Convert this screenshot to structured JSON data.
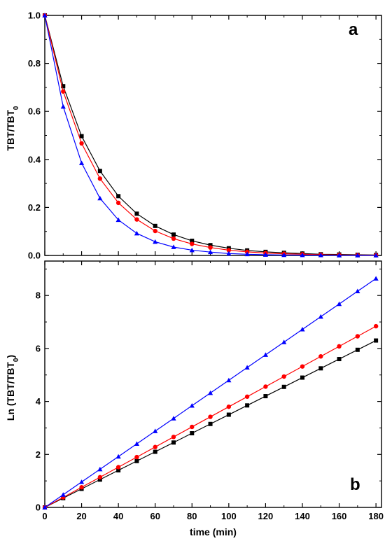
{
  "chart_data": [
    {
      "type": "line",
      "panel_label": "a",
      "xlabel": "",
      "ylabel": "TBT/TBT",
      "ylabel_sub": "0",
      "xlim": [
        0,
        183
      ],
      "ylim": [
        0,
        1.0
      ],
      "xticks": [
        0,
        20,
        40,
        60,
        80,
        100,
        120,
        140,
        160,
        180
      ],
      "yticks": [
        0.0,
        0.2,
        0.4,
        0.6,
        0.8,
        1.0
      ],
      "ytick_labels": [
        "0.0",
        "0.2",
        "0.4",
        "0.6",
        "0.8",
        "1.0"
      ],
      "grid": false,
      "x": [
        0,
        10,
        20,
        30,
        40,
        50,
        60,
        70,
        80,
        90,
        100,
        110,
        120,
        130,
        140,
        150,
        160,
        170,
        180
      ],
      "series": [
        {
          "color": "#000000",
          "marker": "square",
          "values": [
            1.0,
            0.705,
            0.497,
            0.352,
            0.247,
            0.174,
            0.123,
            0.087,
            0.061,
            0.043,
            0.03,
            0.021,
            0.015,
            0.011,
            0.008,
            0.005,
            0.004,
            0.003,
            0.002
          ]
        },
        {
          "color": "#ff0000",
          "marker": "circle",
          "values": [
            1.0,
            0.683,
            0.467,
            0.32,
            0.219,
            0.15,
            0.102,
            0.07,
            0.048,
            0.033,
            0.022,
            0.015,
            0.01,
            0.007,
            0.005,
            0.003,
            0.002,
            0.0015,
            0.001
          ]
        },
        {
          "color": "#0000ff",
          "marker": "triangle",
          "values": [
            1.0,
            0.62,
            0.385,
            0.238,
            0.148,
            0.092,
            0.057,
            0.035,
            0.022,
            0.014,
            0.008,
            0.005,
            0.003,
            0.002,
            0.0015,
            0.001,
            0.0005,
            0.0003,
            0.0002
          ]
        }
      ]
    },
    {
      "type": "line",
      "panel_label": "b",
      "xlabel": "time (min)",
      "ylabel": "Ln (TBT/TBT",
      "ylabel_sub": "0",
      "ylabel_suffix": ")",
      "xlim": [
        0,
        183
      ],
      "ylim": [
        0,
        9.3
      ],
      "xticks": [
        0,
        20,
        40,
        60,
        80,
        100,
        120,
        140,
        160,
        180
      ],
      "yticks": [
        0,
        2,
        4,
        6,
        8
      ],
      "ytick_labels": [
        "0",
        "2",
        "4",
        "6",
        "8"
      ],
      "grid": false,
      "x": [
        0,
        10,
        20,
        30,
        40,
        50,
        60,
        70,
        80,
        90,
        100,
        110,
        120,
        130,
        140,
        150,
        160,
        170,
        180
      ],
      "series": [
        {
          "color": "#000000",
          "marker": "square",
          "values": [
            0,
            0.35,
            0.7,
            1.05,
            1.4,
            1.75,
            2.1,
            2.45,
            2.8,
            3.15,
            3.5,
            3.85,
            4.2,
            4.55,
            4.9,
            5.25,
            5.6,
            5.95,
            6.3
          ]
        },
        {
          "color": "#ff0000",
          "marker": "circle",
          "values": [
            0,
            0.38,
            0.76,
            1.14,
            1.52,
            1.9,
            2.28,
            2.66,
            3.04,
            3.42,
            3.8,
            4.18,
            4.56,
            4.94,
            5.32,
            5.7,
            6.08,
            6.46,
            6.84
          ]
        },
        {
          "color": "#0000ff",
          "marker": "triangle",
          "values": [
            0,
            0.48,
            0.96,
            1.44,
            1.92,
            2.4,
            2.88,
            3.36,
            3.84,
            4.32,
            4.8,
            5.28,
            5.76,
            6.24,
            6.72,
            7.2,
            7.68,
            8.16,
            8.64
          ]
        }
      ]
    }
  ]
}
